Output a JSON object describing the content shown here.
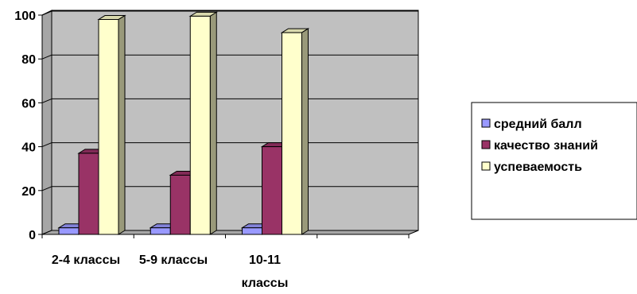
{
  "chart_data": {
    "type": "bar",
    "categories": [
      "2-4 классы",
      "5-9 классы",
      "10-11 классы"
    ],
    "series": [
      {
        "name": "средний балл",
        "values": [
          3,
          3,
          3
        ],
        "color": "#9999FF"
      },
      {
        "name": "качество знаний",
        "values": [
          37,
          27,
          40
        ],
        "color": "#993366"
      },
      {
        "name": "успеваемость",
        "values": [
          98,
          99.5,
          92
        ],
        "color": "#FFFFCC"
      }
    ],
    "title": "",
    "xlabel": "",
    "ylabel": "",
    "ylim": [
      0,
      100
    ],
    "yticks": [
      0,
      20,
      40,
      60,
      80,
      100
    ],
    "grid": true,
    "legend": "right",
    "wall_color": "#C0C0C0",
    "three_d": true
  }
}
